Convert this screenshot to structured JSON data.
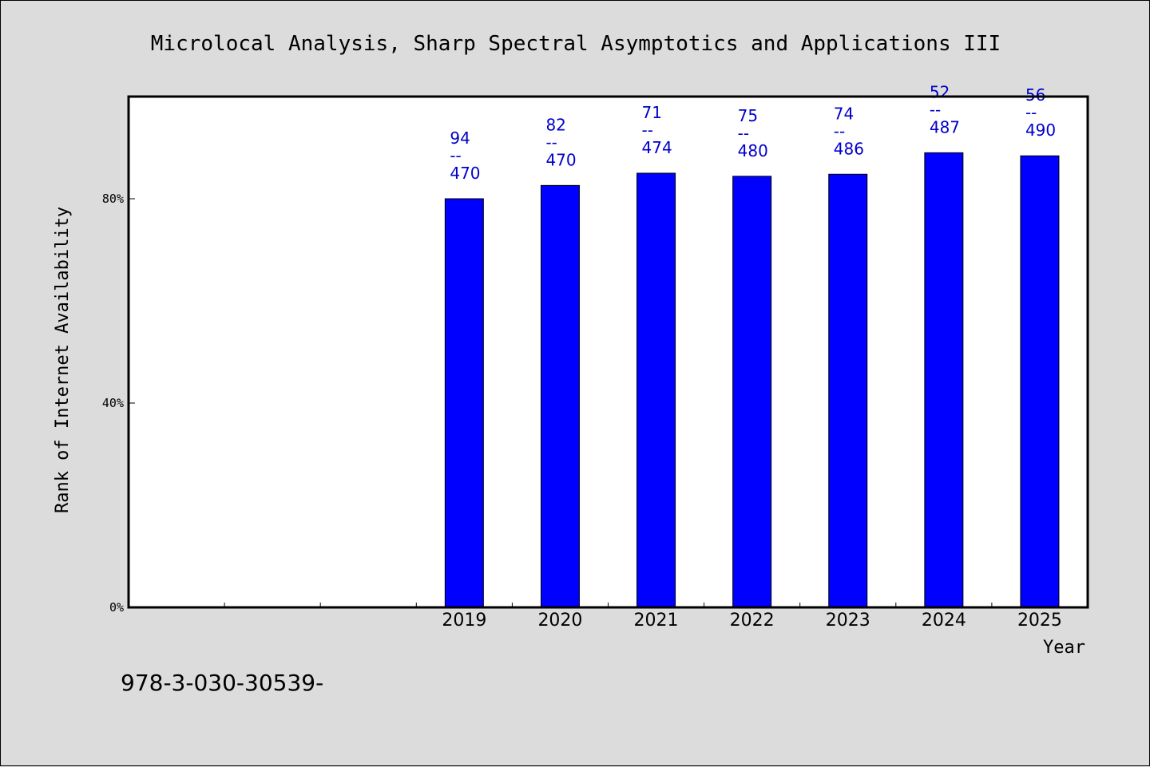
{
  "chart_data": {
    "type": "bar",
    "title": "Microlocal Analysis, Sharp Spectral Asymptotics and Applications III",
    "xlabel": "Year",
    "ylabel": "Rank of Internet Availability",
    "categories": [
      "",
      "",
      "",
      "2019",
      "2020",
      "2021",
      "2022",
      "2023",
      "2024",
      "2025"
    ],
    "series": [
      {
        "values": [
          null,
          null,
          null,
          80.0,
          82.6,
          85.0,
          84.4,
          84.8,
          89.0,
          88.4
        ],
        "labels": [
          null,
          null,
          null,
          [
            "94",
            "--",
            "470"
          ],
          [
            "82",
            "--",
            "470"
          ],
          [
            "71",
            "--",
            "474"
          ],
          [
            "75",
            "--",
            "480"
          ],
          [
            "74",
            "--",
            "486"
          ],
          [
            "52",
            "--",
            "487"
          ],
          [
            "56",
            "--",
            "490"
          ]
        ]
      }
    ],
    "yticks": [
      0,
      40,
      80
    ],
    "ytick_labels": [
      "0%",
      "40%",
      "80%"
    ],
    "ylim": [
      0,
      100
    ],
    "grid": false,
    "legend": "none",
    "bar_color": "#0000ff",
    "label_color": "#0000cc"
  },
  "footer_note": "978-3-030-30539-"
}
